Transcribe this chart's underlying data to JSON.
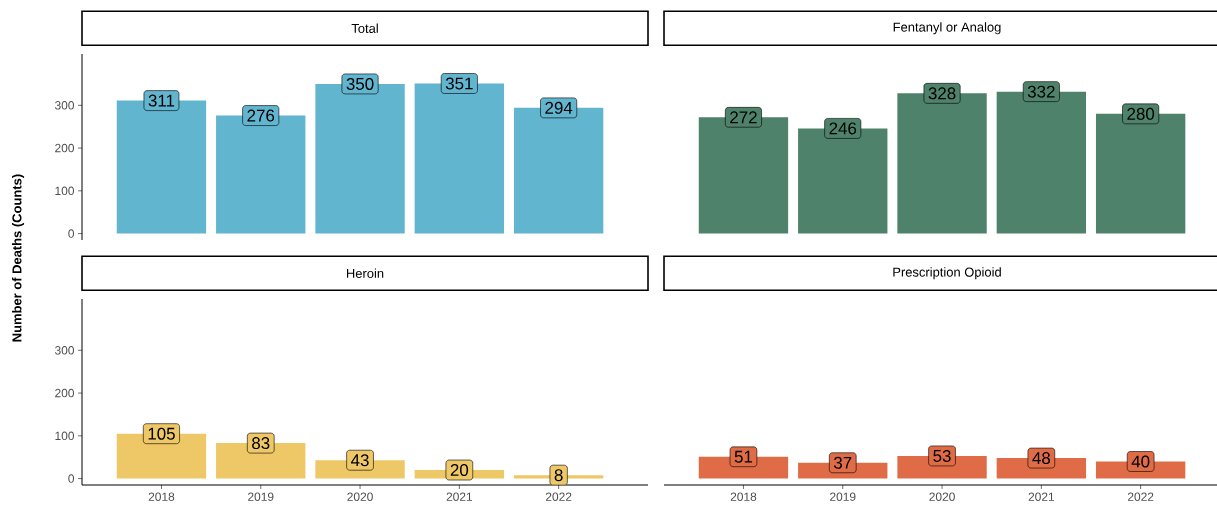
{
  "chart_data": [
    {
      "type": "bar",
      "title": "Total",
      "categories": [
        "2018",
        "2019",
        "2020",
        "2021",
        "2022"
      ],
      "values": [
        311,
        276,
        350,
        351,
        294
      ],
      "color": "#62b5cf",
      "data_labels": true,
      "ylim": [
        -15,
        420
      ],
      "yticks": [
        0,
        100,
        200,
        300
      ],
      "tick_labels": "y"
    },
    {
      "type": "bar",
      "title": "Fentanyl or Analog",
      "categories": [
        "2018",
        "2019",
        "2020",
        "2021",
        "2022"
      ],
      "values": [
        272,
        246,
        328,
        332,
        280
      ],
      "color": "#4e826a",
      "data_labels": true,
      "tick_labels": false
    },
    {
      "type": "bar",
      "title": "Heroin",
      "ylabel": "Number of Deaths (Counts)",
      "categories": [
        "2018",
        "2019",
        "2020",
        "2021",
        "2022"
      ],
      "values": [
        105,
        83,
        43,
        20,
        8
      ],
      "color": "#eec867",
      "data_labels": true,
      "ylim": [
        -15,
        420
      ],
      "yticks": [
        0,
        100,
        200,
        300
      ]
    },
    {
      "type": "bar",
      "title": "Prescription Opioid",
      "categories": [
        "2018",
        "2019",
        "2020",
        "2021",
        "2022"
      ],
      "values": [
        51,
        37,
        53,
        48,
        40
      ],
      "color": "#e06c47",
      "data_labels": true,
      "tick_labels": "x"
    }
  ]
}
